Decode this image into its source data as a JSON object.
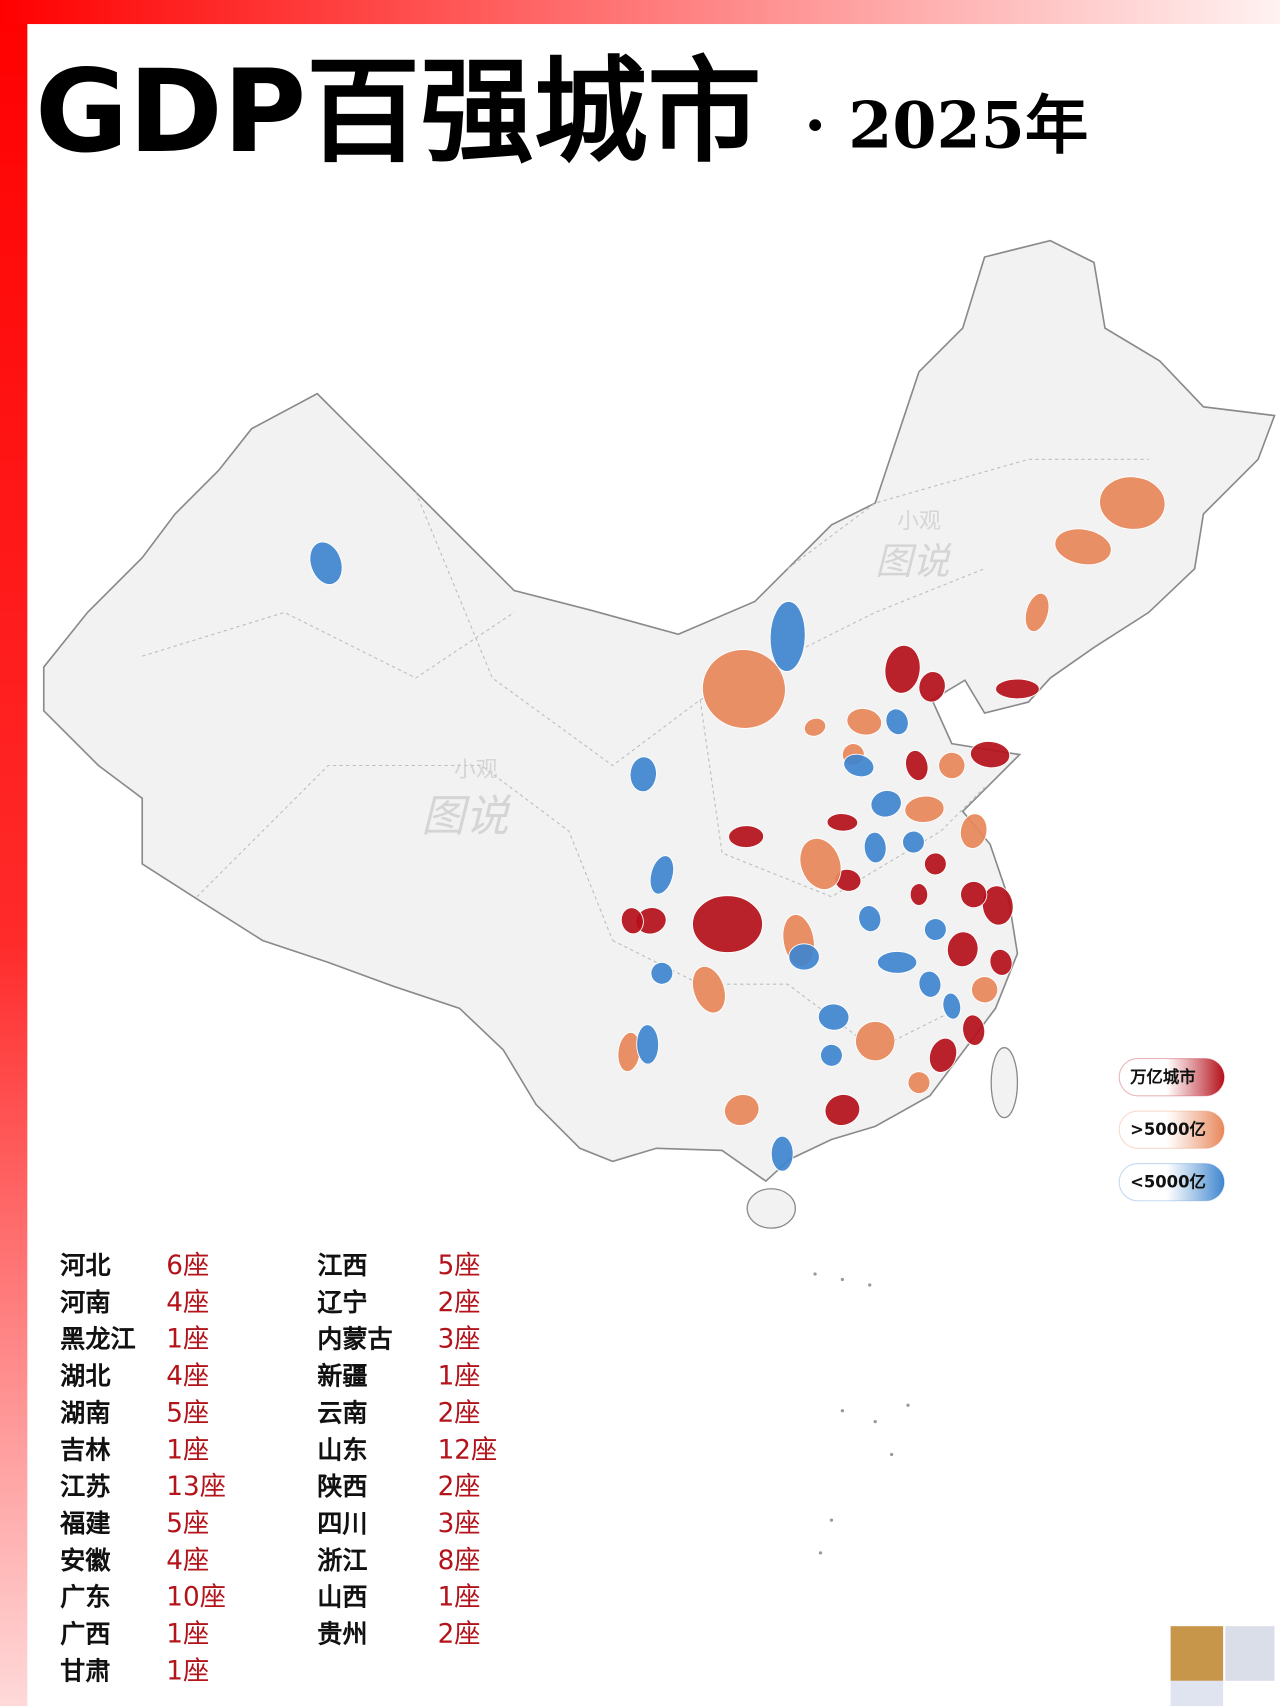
{
  "header": {
    "title": "GDP百强城市",
    "subtitle": "· 2025年"
  },
  "watermark": {
    "line1": "小观",
    "line2": "图说"
  },
  "legend": [
    {
      "label": "万亿城市",
      "color": "#b5101a"
    },
    {
      "label": ">5000亿",
      "color": "#e8875a"
    },
    {
      "label": "<5000亿",
      "color": "#3f86cf"
    }
  ],
  "provinces": {
    "left": [
      {
        "name": "河北",
        "count": "6座"
      },
      {
        "name": "河南",
        "count": "4座"
      },
      {
        "name": "黑龙江",
        "count": "1座"
      },
      {
        "name": "湖北",
        "count": "4座"
      },
      {
        "name": "湖南",
        "count": "5座"
      },
      {
        "name": "吉林",
        "count": "1座"
      },
      {
        "name": "江苏",
        "count": "13座"
      },
      {
        "name": "福建",
        "count": "5座"
      },
      {
        "name": "安徽",
        "count": "4座"
      },
      {
        "name": "广东",
        "count": "10座"
      },
      {
        "name": "广西",
        "count": "1座"
      },
      {
        "name": "甘肃",
        "count": "1座"
      }
    ],
    "right": [
      {
        "name": "江西",
        "count": "5座"
      },
      {
        "name": "辽宁",
        "count": "2座"
      },
      {
        "name": "内蒙古",
        "count": "3座"
      },
      {
        "name": "新疆",
        "count": "1座"
      },
      {
        "name": "云南",
        "count": "2座"
      },
      {
        "name": "山东",
        "count": "12座"
      },
      {
        "name": "陕西",
        "count": "2座"
      },
      {
        "name": "四川",
        "count": "3座"
      },
      {
        "name": "浙江",
        "count": "8座"
      },
      {
        "name": "山西",
        "count": "1座"
      },
      {
        "name": "贵州",
        "count": "2座"
      }
    ]
  }
}
